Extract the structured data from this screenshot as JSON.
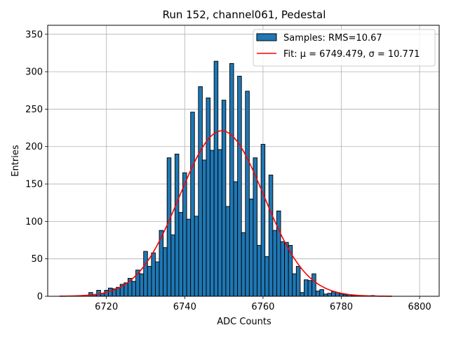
{
  "chart_data": {
    "type": "bar",
    "title": "Run 152, channel061, Pedestal",
    "xlabel": "ADC Counts",
    "ylabel": "Entries",
    "xlim": [
      6705,
      6805
    ],
    "ylim": [
      0,
      362
    ],
    "xticks": [
      6720,
      6740,
      6760,
      6780,
      6800
    ],
    "yticks": [
      0,
      50,
      100,
      150,
      200,
      250,
      300,
      350
    ],
    "grid": true,
    "legend_position": "top-right",
    "bar_color": "#1f77b4",
    "fit_color": "#ff0000",
    "histogram": {
      "name": "Samples: RMS=10.67",
      "bin_width": 1,
      "x": [
        6716,
        6717,
        6718,
        6719,
        6720,
        6721,
        6722,
        6723,
        6724,
        6725,
        6726,
        6727,
        6728,
        6729,
        6730,
        6731,
        6732,
        6733,
        6734,
        6735,
        6736,
        6737,
        6738,
        6739,
        6740,
        6741,
        6742,
        6743,
        6744,
        6745,
        6746,
        6747,
        6748,
        6749,
        6750,
        6751,
        6752,
        6753,
        6754,
        6755,
        6756,
        6757,
        6758,
        6759,
        6760,
        6761,
        6762,
        6763,
        6764,
        6765,
        6766,
        6767,
        6768,
        6769,
        6770,
        6771,
        6772,
        6773,
        6774,
        6775,
        6776,
        6777,
        6778,
        6779,
        6780,
        6781,
        6782,
        6783,
        6784,
        6785,
        6786,
        6787,
        6788
      ],
      "values": [
        5,
        2,
        8,
        4,
        8,
        11,
        10,
        12,
        16,
        18,
        24,
        20,
        35,
        30,
        60,
        40,
        58,
        46,
        88,
        65,
        185,
        82,
        190,
        112,
        165,
        103,
        246,
        107,
        280,
        182,
        265,
        195,
        314,
        196,
        262,
        120,
        311,
        153,
        294,
        85,
        274,
        130,
        185,
        68,
        203,
        53,
        162,
        88,
        114,
        73,
        72,
        68,
        30,
        40,
        5,
        22,
        21,
        30,
        7,
        9,
        3,
        4,
        6,
        5,
        3,
        2,
        2,
        1,
        1,
        1,
        0,
        0,
        1
      ]
    },
    "fit": {
      "name": "Fit: μ = 6749.479, σ = 10.771",
      "mu": 6749.479,
      "sigma": 10.771,
      "amplitude": 221,
      "x_range": [
        6708,
        6793
      ]
    }
  }
}
